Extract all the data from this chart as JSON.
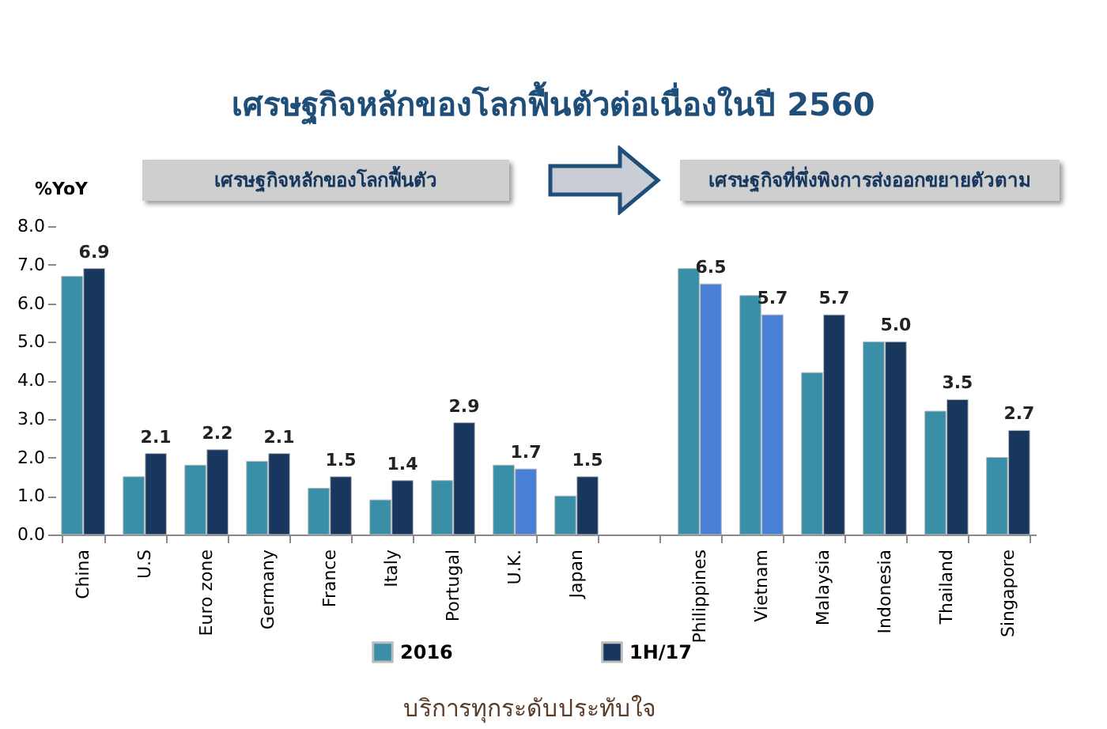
{
  "chart_data": {
    "type": "bar",
    "title": "เศรษฐกิจหลักของโลกฟื้นตัวต่อเนื่องในปี 2560",
    "ylabel": "%YoY",
    "annotations": [
      "เศรษฐกิจหลักของโลกฟื้นตัว",
      "เศรษฐกิจที่พึ่งพิงการส่งออกขยายตัวตาม",
      "บริการทุกระดับประทับใจ"
    ],
    "categories": [
      "China",
      "U.S",
      "Euro zone",
      "Germany",
      "France",
      "Italy",
      "Portugal",
      "U.K.",
      "Japan",
      null,
      "Philippines",
      "Vietnam",
      "Malaysia",
      "Indonesia",
      "Thailand",
      "Singapore"
    ],
    "series": [
      {
        "name": "2016",
        "color": "#3a8fa8",
        "values": [
          6.7,
          1.5,
          1.8,
          1.9,
          1.2,
          0.9,
          1.4,
          1.8,
          1.0,
          null,
          6.9,
          6.2,
          4.2,
          5.0,
          3.2,
          2.0
        ]
      },
      {
        "name": "1H/17",
        "color": "#17375e",
        "colors": [
          "#17375e",
          "#17375e",
          "#17375e",
          "#17375e",
          "#17375e",
          "#17375e",
          "#17375e",
          "#4a7fd6",
          "#17375e",
          "#17375e",
          "#4a7fd6",
          "#4a7fd6",
          "#17375e",
          "#17375e",
          "#17375e",
          "#17375e"
        ],
        "values": [
          6.9,
          2.1,
          2.2,
          2.1,
          1.5,
          1.4,
          2.9,
          1.7,
          1.5,
          null,
          6.5,
          5.7,
          5.7,
          5.0,
          3.5,
          2.7
        ],
        "value_labels": [
          "6.9",
          "2.1",
          "2.2",
          "2.1",
          "1.5",
          "1.4",
          "2.9",
          "1.7",
          "1.5",
          null,
          "6.5",
          "5.7",
          "5.7",
          "5.0",
          "3.5",
          "2.7"
        ]
      }
    ],
    "ylim": [
      0,
      8
    ],
    "yticks": [
      {
        "value": 0,
        "label": "0.0"
      },
      {
        "value": 1,
        "label": "1.0"
      },
      {
        "value": 2,
        "label": "2.0"
      },
      {
        "value": 3,
        "label": "3.0"
      },
      {
        "value": 4,
        "label": "4.0"
      },
      {
        "value": 5,
        "label": "5.0"
      },
      {
        "value": 6,
        "label": "6.0"
      },
      {
        "value": 7,
        "label": "7.0"
      },
      {
        "value": 8,
        "label": "8.0"
      }
    ],
    "legend": "bottom",
    "grid": false
  }
}
